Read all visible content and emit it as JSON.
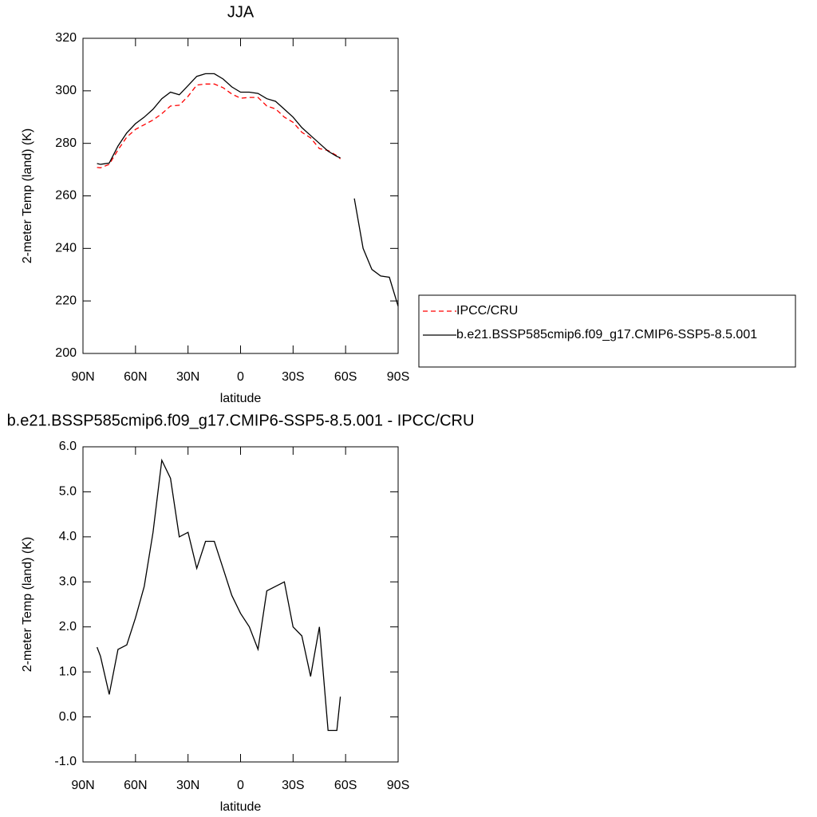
{
  "chart_data": [
    {
      "type": "line",
      "title": "JJA",
      "xlabel": "latitude",
      "ylabel": "2-meter Temp (land) (K)",
      "x": [
        82,
        80,
        75,
        70,
        65,
        60,
        55,
        50,
        45,
        40,
        35,
        30,
        25,
        20,
        15,
        10,
        5,
        0,
        -5,
        -10,
        -15,
        -20,
        -25,
        -30,
        -35,
        -40,
        -45,
        -50,
        -55,
        -57,
        -60,
        -65,
        -70,
        -75,
        -80,
        -85,
        -90
      ],
      "series": [
        {
          "name": "IPCC/CRU",
          "color": "#ff0000",
          "dash": "dashed",
          "values": [
            270.8,
            270.7,
            272.0,
            277.5,
            282.4,
            285.3,
            287.1,
            288.9,
            291.3,
            294.2,
            294.5,
            297.9,
            302.2,
            302.6,
            302.6,
            301.2,
            298.8,
            297.2,
            297.5,
            297.5,
            294.2,
            293.1,
            290.0,
            288.0,
            284.2,
            282.1,
            278.0,
            277.3,
            275.3,
            274.1,
            null,
            null,
            null,
            null,
            null,
            null,
            null
          ]
        },
        {
          "name": "b.e21.BSSP585cmip6.f09_g17.CMIP6-SSP5-8.5.001",
          "color": "#000000",
          "dash": "solid",
          "values": [
            272.3,
            272.0,
            272.5,
            279.0,
            284.0,
            287.5,
            290.0,
            293.0,
            297.0,
            299.5,
            298.5,
            302.0,
            305.5,
            306.5,
            306.5,
            304.5,
            301.5,
            299.5,
            299.5,
            299.0,
            297.0,
            296.0,
            293.0,
            290.0,
            286.0,
            283.0,
            280.0,
            277.0,
            275.0,
            274.5,
            null,
            259.0,
            240.0,
            232.0,
            229.5,
            229.0,
            218.0
          ]
        }
      ],
      "xlim": [
        90,
        -90
      ],
      "ylim": [
        200,
        320
      ],
      "xticks": [
        {
          "value": 90,
          "label": "90N"
        },
        {
          "value": 60,
          "label": "60N"
        },
        {
          "value": 30,
          "label": "30N"
        },
        0,
        {
          "value": -30,
          "label": "30S"
        },
        {
          "value": -60,
          "label": "60S"
        },
        {
          "value": -90,
          "label": "90S"
        }
      ],
      "yticks": [
        200,
        220,
        240,
        260,
        280,
        300,
        320
      ],
      "legend": "right"
    },
    {
      "type": "line",
      "title": "b.e21.BSSP585cmip6.f09_g17.CMIP6-SSP5-8.5.001 - IPCC/CRU",
      "xlabel": "latitude",
      "ylabel": "2-meter Temp (land) (K)",
      "x": [
        82,
        80,
        75,
        70,
        65,
        60,
        55,
        50,
        45,
        40,
        35,
        30,
        25,
        20,
        15,
        10,
        5,
        0,
        -5,
        -10,
        -15,
        -20,
        -25,
        -30,
        -35,
        -40,
        -45,
        -50,
        -55,
        -57
      ],
      "series": [
        {
          "color": "#000000",
          "dash": "solid",
          "values": [
            1.55,
            1.35,
            0.5,
            1.5,
            1.6,
            2.2,
            2.9,
            4.1,
            5.7,
            5.3,
            4.0,
            4.1,
            3.3,
            3.9,
            3.9,
            3.3,
            2.7,
            2.3,
            2.0,
            1.5,
            2.8,
            2.9,
            3.0,
            2.0,
            1.8,
            0.9,
            2.0,
            -0.3,
            -0.3,
            0.45
          ]
        }
      ],
      "xlim": [
        90,
        -90
      ],
      "ylim": [
        -1,
        6
      ],
      "xticks": [
        {
          "value": 90,
          "label": "90N"
        },
        {
          "value": 60,
          "label": "60N"
        },
        {
          "value": 30,
          "label": "30N"
        },
        0,
        {
          "value": -30,
          "label": "30S"
        },
        {
          "value": -60,
          "label": "60S"
        },
        {
          "value": -90,
          "label": "90S"
        }
      ],
      "yticks": [
        {
          "value": -1,
          "label": "-1.0"
        },
        {
          "value": 0,
          "label": "0.0"
        },
        {
          "value": 1,
          "label": "1.0"
        },
        {
          "value": 2,
          "label": "2.0"
        },
        {
          "value": 3,
          "label": "3.0"
        },
        {
          "value": 4,
          "label": "4.0"
        },
        {
          "value": 5,
          "label": "5.0"
        },
        {
          "value": 6,
          "label": "6.0"
        }
      ]
    }
  ]
}
